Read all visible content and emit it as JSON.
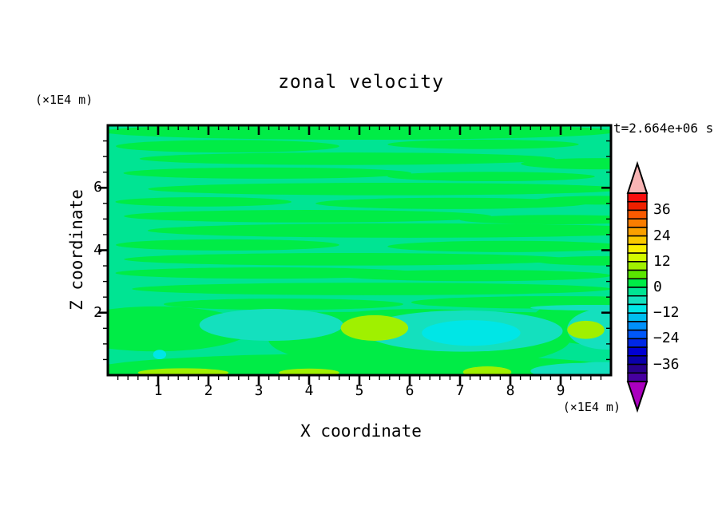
{
  "figure": {
    "title": "zonal velocity",
    "timestamp": "t=2.664e+06 s"
  },
  "axes": {
    "x": {
      "title": "X coordinate",
      "units": "(×1E4 m)",
      "min": 0,
      "max": 10,
      "major_ticks": [
        1,
        2,
        3,
        4,
        5,
        6,
        7,
        8,
        9
      ],
      "minor_step": 0.2
    },
    "z": {
      "title": "Z coordinate",
      "units": "(×1E4 m)",
      "min": 0,
      "max": 8,
      "major_ticks": [
        2,
        4,
        6
      ],
      "minor_step": 0.5
    }
  },
  "colorbar": {
    "min": -44,
    "max": 44,
    "interval": 4,
    "tick_values": [
      36,
      24,
      12,
      0,
      -12,
      -24,
      -36
    ],
    "tick_labels": [
      "36",
      "24",
      "12",
      "0",
      "−12",
      "−24",
      "−36"
    ],
    "cell_colors_top_to_bottom": [
      "#FA0F0F",
      "#EE2000",
      "#FA5A00",
      "#FA7D00",
      "#FAA000",
      "#FAC800",
      "#FAF000",
      "#D2FA00",
      "#A0F000",
      "#5AE600",
      "#00EC46",
      "#00E493",
      "#14E0BE",
      "#00E6E6",
      "#00BEF0",
      "#0090FA",
      "#0058FA",
      "#0028E6",
      "#0000D2",
      "#0A00AA",
      "#28008C",
      "#4600A0"
    ],
    "over_arrow_color": "#F8B4B4",
    "under_arrow_color": "#AA00BE"
  },
  "chart_data": {
    "type": "heatmap",
    "title": "zonal velocity",
    "xlabel": "X coordinate",
    "ylabel": "Z coordinate",
    "x_units": "(×1E4 m)",
    "y_units": "(×1E4 m)",
    "xlim": [
      0,
      10
    ],
    "ylim": [
      0,
      8
    ],
    "x_ticks": [
      1,
      2,
      3,
      4,
      5,
      6,
      7,
      8,
      9
    ],
    "y_ticks": [
      2,
      4,
      6
    ],
    "time_annotation": "t=2.664e+06 s",
    "contour_interval": 4,
    "value_range_shown": [
      -44,
      44
    ],
    "background_level": -2,
    "description": "Filled contour field of zonal velocity, values mostly between -12 and +12: horizontal green streaks (0 to +4) over spring-green background (-4 to 0) in upper region; near the bottom, turquoise (-8 to -4) and cyan (-12 to -8) pools plus chartreuse (+8 to +12) patches.",
    "bands": [
      {
        "level": 2,
        "x": 5.0,
        "z": 7.8,
        "rx": 5.1,
        "ry": 0.26
      },
      {
        "level": 2,
        "x": 2.38,
        "z": 7.33,
        "rx": 2.22,
        "ry": 0.2
      },
      {
        "level": 2,
        "x": 7.46,
        "z": 7.39,
        "rx": 1.9,
        "ry": 0.15
      },
      {
        "level": 2,
        "x": 4.76,
        "z": 6.93,
        "rx": 4.13,
        "ry": 0.2
      },
      {
        "level": 2,
        "x": 9.8,
        "z": 6.77,
        "rx": 1.59,
        "ry": 0.18
      },
      {
        "level": 2,
        "x": 3.17,
        "z": 6.47,
        "rx": 2.86,
        "ry": 0.18
      },
      {
        "level": 2,
        "x": 7.62,
        "z": 6.36,
        "rx": 2.06,
        "ry": 0.15
      },
      {
        "level": 2,
        "x": 5.56,
        "z": 5.96,
        "rx": 4.76,
        "ry": 0.2
      },
      {
        "level": 2,
        "x": 1.9,
        "z": 5.55,
        "rx": 1.75,
        "ry": 0.15
      },
      {
        "level": 2,
        "x": 6.83,
        "z": 5.5,
        "rx": 2.7,
        "ry": 0.18
      },
      {
        "level": 2,
        "x": 9.8,
        "z": 5.6,
        "rx": 1.3,
        "ry": 0.14
      },
      {
        "level": 2,
        "x": 3.97,
        "z": 5.09,
        "rx": 3.65,
        "ry": 0.2
      },
      {
        "level": 2,
        "x": 8.89,
        "z": 4.98,
        "rx": 1.9,
        "ry": 0.15
      },
      {
        "level": 2,
        "x": 6.03,
        "z": 4.63,
        "rx": 5.24,
        "ry": 0.23
      },
      {
        "level": 2,
        "x": 2.38,
        "z": 4.17,
        "rx": 2.22,
        "ry": 0.18
      },
      {
        "level": 2,
        "x": 7.94,
        "z": 4.12,
        "rx": 2.38,
        "ry": 0.18
      },
      {
        "level": 2,
        "x": 4.76,
        "z": 3.71,
        "rx": 4.44,
        "ry": 0.2
      },
      {
        "level": 2,
        "x": 9.9,
        "z": 3.66,
        "rx": 1.43,
        "ry": 0.15
      },
      {
        "level": 2,
        "x": 3.17,
        "z": 3.27,
        "rx": 3.02,
        "ry": 0.18
      },
      {
        "level": 2,
        "x": 7.3,
        "z": 3.19,
        "rx": 2.7,
        "ry": 0.18
      },
      {
        "level": 2,
        "x": 5.24,
        "z": 2.76,
        "rx": 4.76,
        "ry": 0.2
      },
      {
        "level": 2,
        "x": 8.89,
        "z": 2.33,
        "rx": 2.86,
        "ry": 0.2
      },
      {
        "level": 2,
        "x": 3.49,
        "z": 2.27,
        "rx": 2.38,
        "ry": 0.18
      },
      {
        "level": 2,
        "x": 6.35,
        "z": 1.81,
        "rx": 4.44,
        "ry": 0.23
      },
      {
        "level": 2,
        "x": 0.95,
        "z": 1.48,
        "rx": 1.9,
        "ry": 0.72
      },
      {
        "level": 2,
        "x": 6.19,
        "z": 1.15,
        "rx": 3.0,
        "ry": 0.97
      },
      {
        "level": 2,
        "x": 9.7,
        "z": 1.74,
        "rx": 1.27,
        "ry": 0.77
      },
      {
        "level": 2,
        "x": 5.0,
        "z": 0.13,
        "rx": 5.4,
        "ry": 0.56
      },
      {
        "level": -6,
        "x": 3.25,
        "z": 1.61,
        "rx": 1.43,
        "ry": 0.51
      },
      {
        "level": -6,
        "x": 7.06,
        "z": 1.41,
        "rx": 1.98,
        "ry": 0.66
      },
      {
        "level": -6,
        "x": 9.92,
        "z": 1.48,
        "rx": 0.79,
        "ry": 0.66
      },
      {
        "level": -6,
        "x": 9.6,
        "z": 2.16,
        "rx": 1.2,
        "ry": 0.09
      },
      {
        "level": -6,
        "x": 9.8,
        "z": 0.12,
        "rx": 0.85,
        "ry": 0.3
      },
      {
        "level": -6,
        "x": 9.5,
        "z": 0.13,
        "rx": 1.1,
        "ry": 0.26
      },
      {
        "level": -10,
        "x": 7.22,
        "z": 1.35,
        "rx": 0.98,
        "ry": 0.41
      },
      {
        "level": -10,
        "x": 1.03,
        "z": 0.66,
        "rx": 0.13,
        "ry": 0.15
      },
      {
        "level": 10,
        "x": 5.3,
        "z": 1.51,
        "rx": 0.67,
        "ry": 0.41
      },
      {
        "level": 10,
        "x": 9.5,
        "z": 1.45,
        "rx": 0.37,
        "ry": 0.29
      },
      {
        "level": 10,
        "x": 7.54,
        "z": 0.1,
        "rx": 0.48,
        "ry": 0.18
      },
      {
        "level": 10,
        "x": 1.5,
        "z": 0.08,
        "rx": 0.9,
        "ry": 0.14
      },
      {
        "level": 10,
        "x": 4.0,
        "z": 0.08,
        "rx": 0.6,
        "ry": 0.13
      }
    ]
  }
}
